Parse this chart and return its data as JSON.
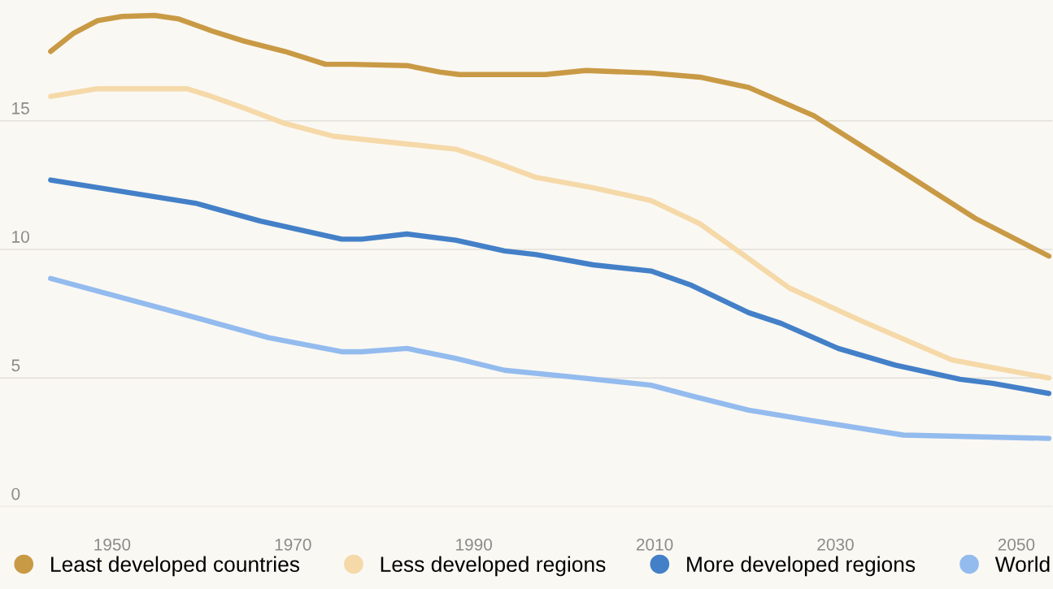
{
  "chart_data": {
    "type": "line",
    "xlim": [
      1937.6,
      2054
    ],
    "ylim": [
      0,
      19.7
    ],
    "xticks": [
      1950,
      1970,
      1990,
      2010,
      2030,
      2050
    ],
    "yticks": [
      0,
      5,
      10,
      15
    ],
    "grid": "y",
    "legend": "bottom",
    "marker": "none",
    "line_style": "solid",
    "series": [
      {
        "name": "Least developed countries",
        "color": "#c99a45",
        "x": [
          1943.2,
          1945.7,
          1948.4,
          1951.1,
          1954.7,
          1957.4,
          1961,
          1964.6,
          1969.1,
          1973.6,
          1976.3,
          1982.6,
          1986.2,
          1988.4,
          1997.9,
          2002.4,
          2009.6,
          2015,
          2020.4,
          2027.6,
          2036.6,
          2045.5,
          2053.6
        ],
        "values": [
          17.7,
          18.4,
          18.9,
          19.06,
          19.1,
          18.96,
          18.5,
          18.1,
          17.7,
          17.2,
          17.2,
          17.15,
          16.9,
          16.8,
          16.8,
          16.96,
          16.86,
          16.7,
          16.3,
          15.2,
          13.2,
          11.2,
          9.74
        ]
      },
      {
        "name": "Less developed regions",
        "color": "#f5d9a8",
        "x": [
          1943.2,
          1948.4,
          1958.3,
          1961,
          1964.6,
          1969.1,
          1974.5,
          1982.6,
          1988,
          1991.5,
          1996.9,
          2003.2,
          2009.6,
          2015,
          2020.4,
          2024.9,
          2033,
          2042.9,
          2053.6
        ],
        "values": [
          15.95,
          16.25,
          16.25,
          15.95,
          15.5,
          14.9,
          14.4,
          14.1,
          13.9,
          13.5,
          12.8,
          12.4,
          11.9,
          11.0,
          9.64,
          8.5,
          7.2,
          5.7,
          5.0
        ]
      },
      {
        "name": "More developed regions",
        "color": "#4380c8",
        "x": [
          1943.2,
          1959.2,
          1966.4,
          1975.4,
          1977.6,
          1982.6,
          1988,
          1993.4,
          1996.9,
          2003.2,
          2009.6,
          2014.1,
          2020.4,
          2024,
          2030.3,
          2036.6,
          2043.8,
          2047.4,
          2053.6
        ],
        "values": [
          12.7,
          11.8,
          11.1,
          10.4,
          10.4,
          10.6,
          10.36,
          9.94,
          9.8,
          9.4,
          9.16,
          8.6,
          7.54,
          7.12,
          6.15,
          5.5,
          4.95,
          4.79,
          4.4
        ]
      },
      {
        "name": "World",
        "color": "#93bbee",
        "x": [
          1943.2,
          1955.6,
          1967.3,
          1975.4,
          1977.6,
          1982.6,
          1988,
          1993.4,
          2000.6,
          2009.6,
          2014.1,
          2020.4,
          2027.6,
          2037.5,
          2053.6
        ],
        "values": [
          8.87,
          7.7,
          6.57,
          6.02,
          6.02,
          6.15,
          5.76,
          5.3,
          5.05,
          4.72,
          4.3,
          3.75,
          3.33,
          2.78,
          2.65
        ]
      }
    ]
  }
}
